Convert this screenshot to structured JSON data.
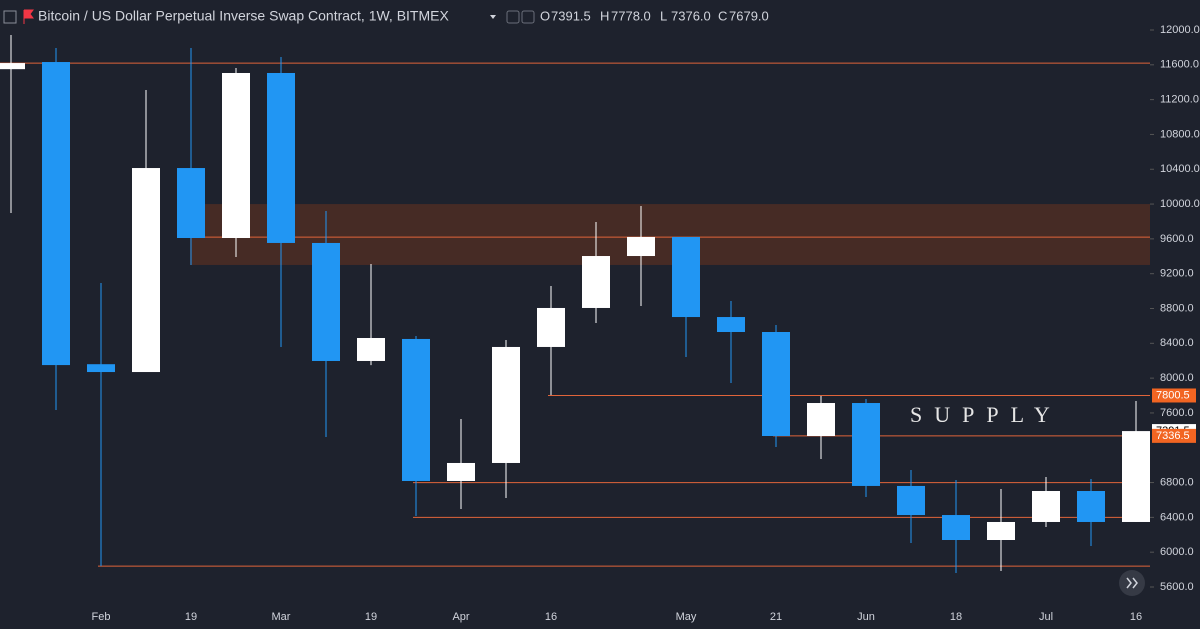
{
  "header": {
    "title": "Bitcoin / US Dollar Perpetual Inverse Swap Contract, 1W, BITMEX",
    "ohlc": [
      {
        "key": "O",
        "value": "7391.5"
      },
      {
        "key": "H",
        "value": "7778.0"
      },
      {
        "key": "L",
        "value": "7376.0"
      },
      {
        "key": "C",
        "value": "7679.0"
      }
    ]
  },
  "chart_data": {
    "type": "candlestick",
    "categories": [
      null,
      null,
      "Feb",
      null,
      "19",
      null,
      "Mar",
      null,
      "19",
      null,
      "Apr",
      null,
      "16",
      null,
      null,
      "May",
      null,
      "21",
      null,
      "Jun",
      null,
      "18",
      null,
      "Jul",
      null,
      "16"
    ],
    "open": [
      11550,
      11632,
      8160,
      8070,
      10414,
      9610,
      11506,
      9553,
      8197,
      8450,
      6818,
      7025,
      8358,
      8806,
      9403,
      9622,
      8702,
      8530,
      7335,
      7714,
      6761,
      6427,
      6140,
      6347,
      6703,
      6347
    ],
    "high": [
      11943,
      11793,
      9093,
      11310,
      11793,
      11563,
      11690,
      9920,
      9311,
      8484,
      7530,
      8438,
      9058,
      9794,
      9978,
      9622,
      8886,
      8610,
      7794,
      7760,
      6944,
      6830,
      6726,
      6864,
      6841,
      7737
    ],
    "low": [
      9897,
      7634,
      5840,
      8070,
      9300,
      9392,
      8358,
      7324,
      8150,
      6416,
      6496,
      6623,
      7806,
      8633,
      8829,
      8243,
      7944,
      7209,
      7071,
      6634,
      6106,
      5761,
      5784,
      6289,
      6071,
      6347
    ],
    "close": [
      11620,
      8150,
      8070,
      10414,
      9610,
      11506,
      9553,
      8197,
      8461,
      6818,
      7025,
      8358,
      8806,
      9403,
      9622,
      8702,
      8530,
      7335,
      7714,
      6761,
      6427,
      6140,
      6347,
      6703,
      6347,
      7391.5
    ],
    "up_color": "#ffffff",
    "down_color": "#2196f3",
    "ylim": [
      5600,
      12000
    ],
    "yticks": [
      {
        "value": 12000,
        "label": "12000.0"
      },
      {
        "value": 11600,
        "label": "11600.0"
      },
      {
        "value": 11200,
        "label": "11200.0"
      },
      {
        "value": 10800,
        "label": "10800.0"
      },
      {
        "value": 10400,
        "label": "10400.0"
      },
      {
        "value": 10000,
        "label": "10000.0"
      },
      {
        "value": 9600,
        "label": "9600.0"
      },
      {
        "value": 9200,
        "label": "9200.0"
      },
      {
        "value": 8800,
        "label": "8800.0"
      },
      {
        "value": 8400,
        "label": "8400.0"
      },
      {
        "value": 8000,
        "label": "8000.0"
      },
      {
        "value": 7600,
        "label": "7600.0"
      },
      {
        "value": 6800,
        "label": "6800.0"
      },
      {
        "value": 6400,
        "label": "6400.0"
      },
      {
        "value": 6000,
        "label": "6000.0"
      },
      {
        "value": 5600,
        "label": "5600.0"
      }
    ],
    "zone": {
      "low": 9300,
      "high": 10000,
      "color": "#4a2c25"
    },
    "levels": [
      11620,
      9620,
      6800,
      6400,
      5840
    ],
    "level_color": "#e0643a",
    "price_labels": [
      {
        "value": 7800.5,
        "color": "#f26522"
      },
      {
        "value": 7391.5,
        "color": "#ffffff"
      },
      {
        "value": 7336.5,
        "color": "#f26522"
      }
    ],
    "annotation": "SUPPLY"
  }
}
